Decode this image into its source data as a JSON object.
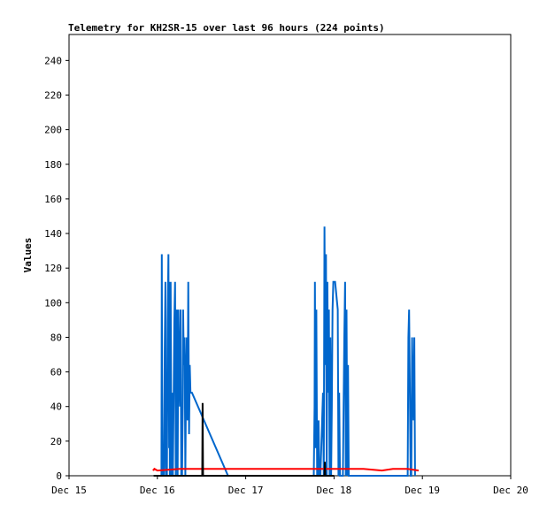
{
  "chart_data": {
    "type": "line",
    "title": "Telemetry for KH2SR-15 over last 96 hours (224 points)",
    "ylabel": "Values",
    "xlabel": "",
    "x_unit": "hours since Dec 15",
    "xlim": [
      0,
      120
    ],
    "ylim": [
      0,
      255
    ],
    "yticks": [
      0,
      20,
      40,
      60,
      80,
      100,
      120,
      140,
      160,
      180,
      200,
      220,
      240
    ],
    "xticks": [
      {
        "x": 0,
        "label": "Dec 15"
      },
      {
        "x": 24,
        "label": "Dec 16"
      },
      {
        "x": 48,
        "label": "Dec 17"
      },
      {
        "x": 72,
        "label": "Dec 18"
      },
      {
        "x": 96,
        "label": "Dec 19"
      },
      {
        "x": 120,
        "label": "Dec 20"
      }
    ],
    "grid": false,
    "series": [
      {
        "color": "#0066cc",
        "points": [
          [
            25.1,
            0
          ],
          [
            25.2,
            128
          ],
          [
            25.3,
            48
          ],
          [
            25.4,
            0
          ],
          [
            25.7,
            0
          ],
          [
            25.8,
            5
          ],
          [
            26.0,
            72
          ],
          [
            26.2,
            112
          ],
          [
            26.3,
            0
          ],
          [
            26.6,
            0
          ],
          [
            26.8,
            88
          ],
          [
            27.0,
            128
          ],
          [
            27.2,
            16
          ],
          [
            27.3,
            112
          ],
          [
            27.4,
            0
          ],
          [
            27.6,
            112
          ],
          [
            27.8,
            0
          ],
          [
            28.0,
            48
          ],
          [
            28.2,
            0
          ],
          [
            28.4,
            40
          ],
          [
            28.6,
            88
          ],
          [
            28.8,
            112
          ],
          [
            29.0,
            0
          ],
          [
            29.1,
            32
          ],
          [
            29.3,
            96
          ],
          [
            29.5,
            0
          ],
          [
            29.7,
            96
          ],
          [
            29.9,
            64
          ],
          [
            30.1,
            40
          ],
          [
            30.3,
            96
          ],
          [
            30.5,
            0
          ],
          [
            30.7,
            0
          ],
          [
            30.9,
            40
          ],
          [
            31.0,
            96
          ],
          [
            31.2,
            64
          ],
          [
            31.4,
            80
          ],
          [
            31.6,
            0
          ],
          [
            31.8,
            56
          ],
          [
            32.0,
            80
          ],
          [
            32.2,
            32
          ],
          [
            32.4,
            112
          ],
          [
            32.6,
            24
          ],
          [
            32.8,
            64
          ],
          [
            33.0,
            48
          ],
          [
            33.2,
            48
          ],
          [
            33.4,
            48
          ],
          [
            43.2,
            0
          ],
          [
            66.5,
            0
          ],
          [
            66.7,
            40
          ],
          [
            66.8,
            112
          ],
          [
            67.0,
            16
          ],
          [
            67.2,
            96
          ],
          [
            67.4,
            0
          ],
          [
            67.6,
            0
          ],
          [
            67.8,
            32
          ],
          [
            68.0,
            0
          ],
          [
            68.3,
            0
          ],
          [
            69.0,
            48
          ],
          [
            69.2,
            0
          ],
          [
            69.4,
            144
          ],
          [
            69.6,
            64
          ],
          [
            69.8,
            128
          ],
          [
            70.0,
            0
          ],
          [
            70.2,
            112
          ],
          [
            70.4,
            48
          ],
          [
            70.6,
            96
          ],
          [
            70.8,
            0
          ],
          [
            71.0,
            80
          ],
          [
            71.2,
            0
          ],
          [
            71.4,
            40
          ],
          [
            71.6,
            96
          ],
          [
            71.8,
            112
          ],
          [
            72.0,
            112
          ],
          [
            72.3,
            112
          ],
          [
            73.0,
            96
          ],
          [
            73.2,
            0
          ],
          [
            73.4,
            48
          ],
          [
            73.6,
            0
          ],
          [
            73.8,
            0
          ],
          [
            74.4,
            0
          ],
          [
            74.8,
            80
          ],
          [
            75.0,
            112
          ],
          [
            75.2,
            0
          ],
          [
            75.4,
            96
          ],
          [
            75.6,
            0
          ],
          [
            75.8,
            64
          ],
          [
            76.0,
            0
          ],
          [
            92.0,
            0
          ],
          [
            92.2,
            80
          ],
          [
            92.4,
            96
          ],
          [
            92.6,
            48
          ],
          [
            92.8,
            0
          ],
          [
            93.0,
            0
          ],
          [
            93.2,
            80
          ],
          [
            93.4,
            48
          ],
          [
            93.6,
            32
          ],
          [
            93.8,
            80
          ],
          [
            94.0,
            0
          ]
        ]
      },
      {
        "color": "#ff0000",
        "points": [
          [
            22.8,
            3
          ],
          [
            23.2,
            4
          ],
          [
            24.0,
            3
          ],
          [
            30.0,
            4
          ],
          [
            45.0,
            4
          ],
          [
            60.0,
            4
          ],
          [
            75.0,
            4
          ],
          [
            80.0,
            4
          ],
          [
            85.0,
            3
          ],
          [
            88.0,
            4
          ],
          [
            92.0,
            4
          ],
          [
            95.0,
            3
          ]
        ]
      },
      {
        "color": "#000000",
        "points": [
          [
            23.0,
            0
          ],
          [
            36.2,
            0
          ],
          [
            36.3,
            42
          ],
          [
            36.4,
            0
          ],
          [
            66.0,
            0
          ],
          [
            69.4,
            0
          ],
          [
            69.5,
            8
          ],
          [
            69.6,
            0
          ],
          [
            72.0,
            0
          ]
        ]
      }
    ]
  }
}
